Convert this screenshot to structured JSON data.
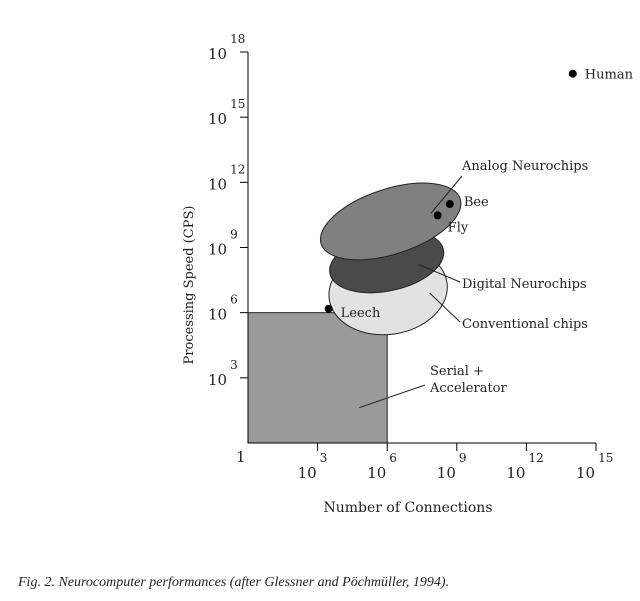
{
  "caption": "Fig. 2. Neurocomputer performances (after Glessner and Pöchmüller, 1994).",
  "chart_data": {
    "type": "scatter",
    "xlabel": "Number of Connections",
    "ylabel": "Processing Speed (CPS)",
    "x_scale": "log10",
    "y_scale": "log10",
    "xlim": [
      1,
      1000000000000000.0
    ],
    "ylim": [
      1,
      1e+18
    ],
    "x_ticks": [
      {
        "base": "1",
        "exp": "",
        "value": 1
      },
      {
        "base": "10",
        "exp": "3",
        "value": 1000.0
      },
      {
        "base": "10",
        "exp": "6",
        "value": 1000000.0
      },
      {
        "base": "10",
        "exp": "9",
        "value": 1000000000.0
      },
      {
        "base": "10",
        "exp": "12",
        "value": 1000000000000.0
      },
      {
        "base": "10",
        "exp": "15",
        "value": 1000000000000000.0
      }
    ],
    "y_ticks": [
      {
        "base": "10",
        "exp": "3",
        "value": 1000.0
      },
      {
        "base": "10",
        "exp": "6",
        "value": 1000000.0
      },
      {
        "base": "10",
        "exp": "9",
        "value": 1000000000.0
      },
      {
        "base": "10",
        "exp": "12",
        "value": 1000000000000.0
      },
      {
        "base": "10",
        "exp": "15",
        "value": 1000000000000000.0
      },
      {
        "base": "10",
        "exp": "18",
        "value": 1e+18
      }
    ],
    "points": [
      {
        "label": "Human",
        "x": 100000000000000.0,
        "y": 1e+17
      },
      {
        "label": "Bee",
        "x": 500000000.0,
        "y": 100000000000.0
      },
      {
        "label": "Fly",
        "x": 150000000.0,
        "y": 30000000000.0
      },
      {
        "label": "Leech",
        "x": 3000.0,
        "y": 1500000.0
      }
    ],
    "regions": [
      {
        "label": "Serial + Accelerator",
        "shape": "rectangle",
        "x": [
          1,
          1000000.0
        ],
        "y": [
          1,
          1000000.0
        ],
        "color": "#9a9a9a"
      },
      {
        "label": "Conventional chips",
        "shape": "ellipse",
        "x": [
          3000.0,
          400000000.0
        ],
        "y": [
          100000.0,
          1000000000.0
        ],
        "color": "#e2e2e2"
      },
      {
        "label": "Digital Neurochips",
        "shape": "ellipse",
        "x": [
          3000.0,
          300000000.0
        ],
        "y": [
          10000000.0,
          5000000000.0
        ],
        "color": "#4a4a4a"
      },
      {
        "label": "Analog Neurochips",
        "shape": "ellipse",
        "x": [
          1000.0,
          2000000000.0
        ],
        "y": [
          500000000.0,
          500000000000.0
        ],
        "color": "#808080"
      }
    ]
  }
}
